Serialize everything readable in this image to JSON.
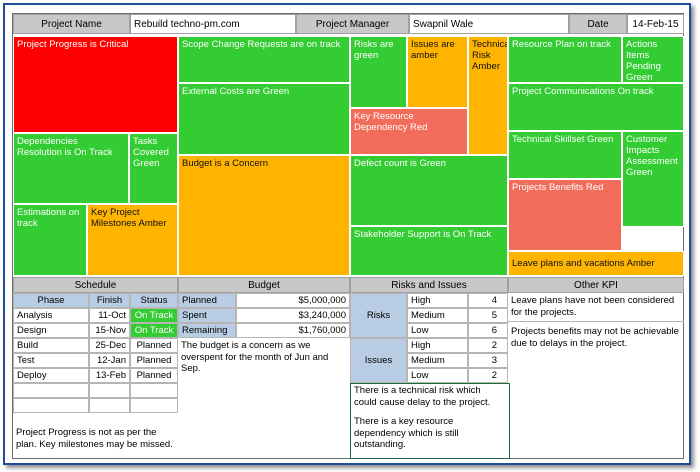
{
  "header": {
    "project_name_label": "Project Name",
    "project_name_value": "Rebuild techno-pm.com",
    "manager_label": "Project Manager",
    "manager_value": "Swapnil Wale",
    "date_label": "Date",
    "date_value": "14-Feb-15"
  },
  "tiles": {
    "t_progress": "Project Progress is Critical",
    "t_dependencies": "Dependencies Resolution is On Track",
    "t_tasks": "Tasks Covered Green",
    "t_estimations": "Estimations on track",
    "t_milestones": "Key Project Milestones Amber",
    "t_scope": "Scope Change Requests are on track",
    "t_external": "External Costs are Green",
    "t_budget": "Budget is a Concern",
    "t_risks": "Risks are green",
    "t_issues": "Issues are amber",
    "t_tech_risk": "Technical Risk Amber",
    "t_key_resource": "Key Resource Dependency Red",
    "t_defect": "Defect count is Green",
    "t_stakeholder": "Stakeholder Support is On Track",
    "t_resource_plan": "Resource Plan on track",
    "t_actions": "Actions Items Pending Green",
    "t_communications": "Project Communications On track",
    "t_skillset": "Technical Skillset Green",
    "t_customer": "Customer Impacts Assessment Green",
    "t_benefits": "Projects Benefits Red",
    "t_leave": "Leave plans and vacations Amber"
  },
  "sections": {
    "schedule": "Schedule",
    "budget": "Budget",
    "risks_issues": "Risks and Issues",
    "other_kpi": "Other KPI"
  },
  "schedule": {
    "columns": [
      "Phase",
      "Finish",
      "Status"
    ],
    "rows": [
      {
        "phase": "Analysis",
        "finish": "11-Oct",
        "status": "On Track"
      },
      {
        "phase": "Design",
        "finish": "15-Nov",
        "status": "On Track"
      },
      {
        "phase": "Build",
        "finish": "25-Dec",
        "status": "Planned"
      },
      {
        "phase": "Test",
        "finish": "12-Jan",
        "status": "Planned"
      },
      {
        "phase": "Deploy",
        "finish": "13-Feb",
        "status": "Planned"
      }
    ],
    "note": "Project Progress is not as per the plan. Key milestones may be missed."
  },
  "budget": {
    "rows": [
      {
        "label": "Planned",
        "value": "$5,000,000"
      },
      {
        "label": "Spent",
        "value": "$3,240,000"
      },
      {
        "label": "Remaining",
        "value": "$1,760,000"
      }
    ],
    "note": "The budget is a concern as we overspent for the month of Jun and Sep."
  },
  "risks_issues": {
    "risks_label": "Risks",
    "issues_label": "Issues",
    "risks": [
      {
        "level": "High",
        "count": "4"
      },
      {
        "level": "Medium",
        "count": "5"
      },
      {
        "level": "Low",
        "count": "6"
      }
    ],
    "issues": [
      {
        "level": "High",
        "count": "2"
      },
      {
        "level": "Medium",
        "count": "3"
      },
      {
        "level": "Low",
        "count": "2"
      }
    ],
    "note1": "There is a technical risk which could cause delay to the project.",
    "note2": "There is a key resource dependency which is still outstanding."
  },
  "other_kpi": {
    "note1": "Leave plans have not been considered for the projects.",
    "note2": "Projects benefits may not be achievable due to delays in the project."
  },
  "colors": {
    "red": "#ff0000",
    "green": "#33cc33",
    "amber": "#ffb400",
    "salmon": "#f26c5b",
    "blue_header": "#b8cce4",
    "frame": "#1f4f9a"
  }
}
